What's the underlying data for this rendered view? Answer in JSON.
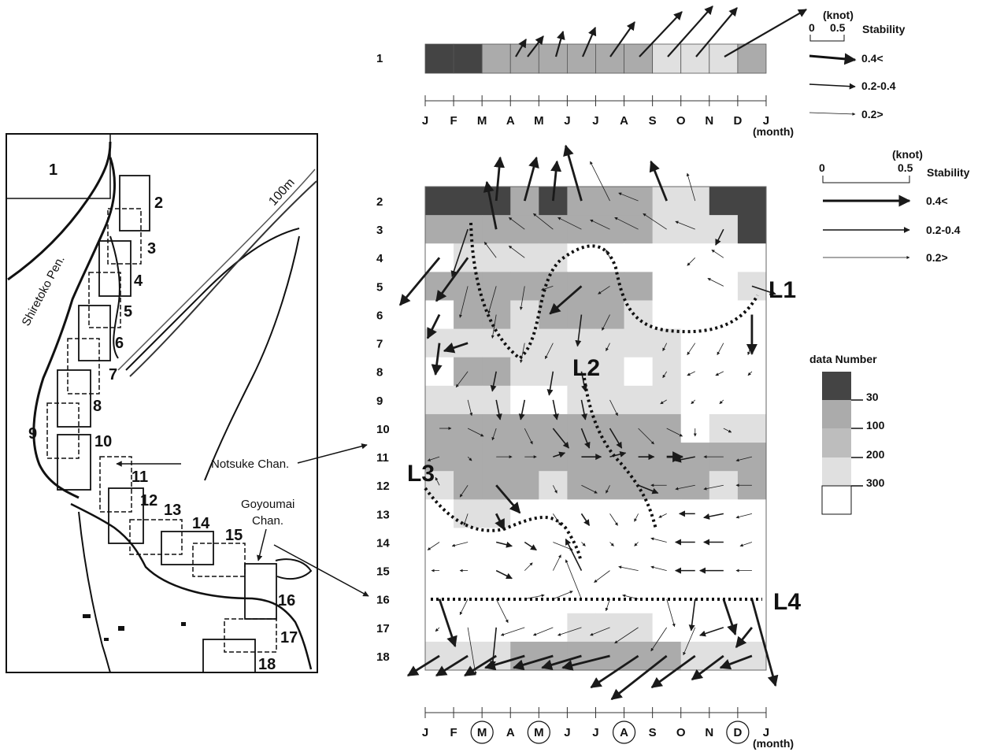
{
  "map": {
    "region_labels": [
      "1",
      "2",
      "3",
      "4",
      "5",
      "6",
      "7",
      "8",
      "9",
      "10",
      "11",
      "12",
      "13",
      "14",
      "15",
      "16",
      "17",
      "18"
    ],
    "peninsula_label": "Shiretoko Pen.",
    "contour_label": "100m",
    "channel_1": "Notsuke Chan.",
    "channel_2_line1": "Goyoumai",
    "channel_2_line2": "Chan."
  },
  "top_panel": {
    "row_label": "1",
    "months": [
      "J",
      "F",
      "M",
      "A",
      "M",
      "J",
      "J",
      "A",
      "S",
      "O",
      "N",
      "D",
      "J"
    ],
    "month_unit": "(month)",
    "density_classes": [
      3,
      3,
      2,
      2,
      2,
      2,
      2,
      2,
      1,
      1,
      1,
      2
    ],
    "legend": {
      "unit": "(knot)",
      "scale_left": "0",
      "scale_right": "0.5",
      "title": "Stability",
      "classes": [
        "0.4<",
        "0.2-0.4",
        "0.2>"
      ]
    }
  },
  "main_panel": {
    "row_labels": [
      "2",
      "3",
      "4",
      "5",
      "6",
      "7",
      "8",
      "9",
      "10",
      "11",
      "12",
      "13",
      "14",
      "15",
      "16",
      "17",
      "18"
    ],
    "months": [
      "J",
      "F",
      "M",
      "A",
      "M",
      "J",
      "J",
      "A",
      "S",
      "O",
      "N",
      "D",
      "J"
    ],
    "circled_months": [
      2,
      4,
      7,
      11
    ],
    "month_unit": "(month)",
    "line_labels": [
      "L1",
      "L2",
      "L3",
      "L4"
    ],
    "density_classes": [
      [
        3,
        3,
        3,
        2,
        3,
        2,
        2,
        2,
        1,
        1,
        3,
        3
      ],
      [
        2,
        2,
        2,
        2,
        2,
        2,
        2,
        2,
        1,
        1,
        1,
        3
      ],
      [
        0,
        1,
        1,
        1,
        1,
        0,
        0,
        0,
        0,
        0,
        0,
        0
      ],
      [
        2,
        2,
        2,
        2,
        2,
        2,
        2,
        2,
        0,
        0,
        0,
        1
      ],
      [
        0,
        2,
        2,
        1,
        2,
        2,
        2,
        1,
        0,
        0,
        0,
        0
      ],
      [
        1,
        1,
        1,
        1,
        1,
        1,
        1,
        1,
        1,
        0,
        0,
        0
      ],
      [
        0,
        2,
        2,
        1,
        1,
        1,
        1,
        0,
        1,
        0,
        0,
        0
      ],
      [
        1,
        1,
        1,
        0,
        0,
        1,
        1,
        1,
        1,
        0,
        0,
        0
      ],
      [
        2,
        2,
        2,
        2,
        2,
        2,
        2,
        2,
        2,
        0,
        1,
        1
      ],
      [
        2,
        2,
        2,
        2,
        2,
        2,
        2,
        2,
        2,
        2,
        2,
        2
      ],
      [
        1,
        2,
        2,
        2,
        1,
        2,
        2,
        2,
        2,
        2,
        1,
        2
      ],
      [
        0,
        1,
        1,
        0,
        0,
        0,
        0,
        0,
        0,
        0,
        0,
        0
      ],
      [
        0,
        0,
        0,
        0,
        0,
        0,
        0,
        0,
        0,
        0,
        0,
        0
      ],
      [
        0,
        0,
        0,
        0,
        0,
        0,
        0,
        0,
        0,
        0,
        0,
        0
      ],
      [
        0,
        0,
        0,
        0,
        0,
        0,
        0,
        0,
        0,
        0,
        0,
        0
      ],
      [
        0,
        0,
        0,
        0,
        0,
        1,
        1,
        1,
        0,
        0,
        0,
        0
      ],
      [
        1,
        1,
        1,
        2,
        2,
        2,
        2,
        2,
        2,
        1,
        1,
        1
      ]
    ],
    "legend": {
      "unit": "(knot)",
      "scale_left": "0",
      "scale_right": "0.5",
      "title": "Stability",
      "classes": [
        "0.4<",
        "0.2-0.4",
        "0.2>"
      ]
    },
    "data_number_legend": {
      "title": "data Number",
      "values": [
        "30",
        "100",
        "200",
        "300"
      ]
    }
  },
  "colors": {
    "class_0": "#ffffff",
    "class_1": "#e0e0e0",
    "class_2": "#ababab",
    "class_3": "#444444",
    "ink": "#1a1a1a"
  }
}
